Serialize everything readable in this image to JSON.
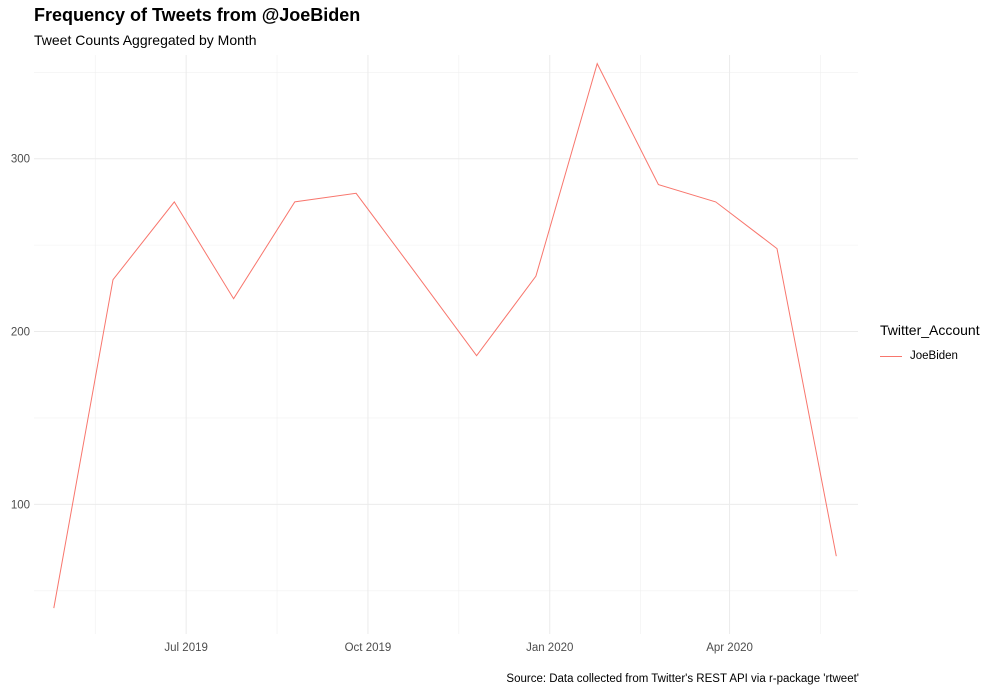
{
  "chart_data": {
    "type": "line",
    "title": "Frequency of Tweets from @JoeBiden",
    "subtitle": "Tweet Counts Aggregated by Month",
    "caption": "Source: Data collected from Twitter's REST API via r-package 'rtweet'",
    "xlabel": "",
    "ylabel": "",
    "x_ticks": [
      "Jul 2019",
      "Oct 2019",
      "Jan 2020",
      "Apr 2020"
    ],
    "y_ticks": [
      100,
      200,
      300
    ],
    "ylim": [
      25,
      360
    ],
    "legend": {
      "title": "Twitter_Account",
      "position": "right"
    },
    "series": [
      {
        "name": "JoeBiden",
        "color": "#F8766D",
        "x": [
          "2019-04-25",
          "2019-05-25",
          "2019-06-25",
          "2019-07-25",
          "2019-08-25",
          "2019-09-25",
          "2019-10-25",
          "2019-11-25",
          "2019-12-25",
          "2020-01-25",
          "2020-02-25",
          "2020-03-25",
          "2020-04-25",
          "2020-05-25"
        ],
        "values": [
          40,
          230,
          275,
          219,
          275,
          280,
          234,
          186,
          232,
          355,
          285,
          275,
          248,
          70
        ]
      }
    ],
    "grid": true
  }
}
